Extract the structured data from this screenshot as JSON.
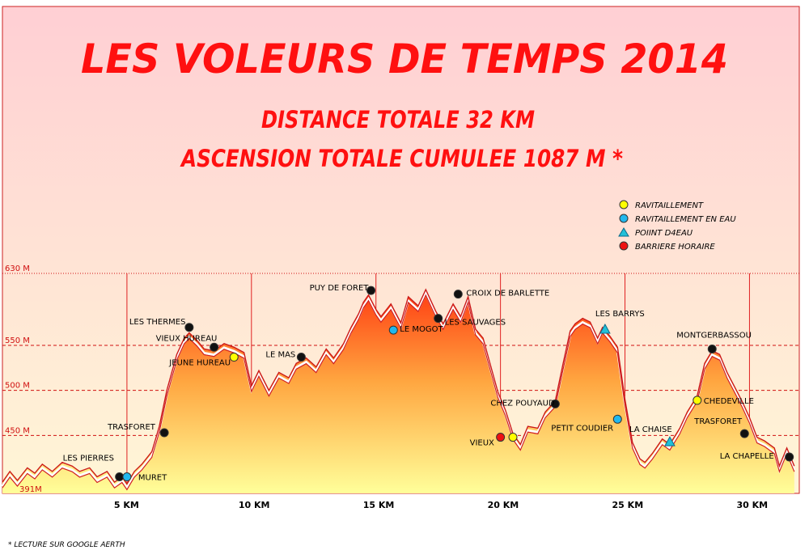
{
  "header": {
    "title": "LES VOLEURS DE TEMPS 2014",
    "line1": "DISTANCE TOTALE 32 KM",
    "line2": "ASCENSION TOTALE CUMULEE 1087 M *"
  },
  "footnote": "* LECTURE SUR GOOGLE AERTH",
  "legend": [
    {
      "label": "RAVITAILLEMENT",
      "kind": "ravito",
      "marker": "circle",
      "color": "#ffff00"
    },
    {
      "label": "RAVITAILLEMENT EN EAU",
      "kind": "eau",
      "marker": "circle",
      "color": "#22b8ee"
    },
    {
      "label": "POIINT D4EAU",
      "kind": "point",
      "marker": "triangle",
      "color": "#22c0d8"
    },
    {
      "label": "BARRIERE HORAIRE",
      "kind": "barriere",
      "marker": "circle",
      "color": "#ee1111"
    }
  ],
  "colors": {
    "bg_top": "#ffd0d0",
    "bg_bottom": "#fff8d8",
    "profile_top": "#ff4a1a",
    "profile_bottom": "#ffff90",
    "gridline": "#d01010",
    "outline": "#cc2020",
    "text_red": "#ff1010"
  },
  "chart_data": {
    "type": "area",
    "xlabel": "",
    "ylabel": "",
    "xlim": [
      0,
      32
    ],
    "ylim": [
      391,
      630
    ],
    "x_ticks": [
      {
        "value": 5,
        "label": "5 KM"
      },
      {
        "value": 10,
        "label": "10 KM"
      },
      {
        "value": 15,
        "label": "15 KM"
      },
      {
        "value": 20,
        "label": "20 KM"
      },
      {
        "value": 25,
        "label": "25 KM"
      },
      {
        "value": 30,
        "label": "30 KM"
      }
    ],
    "y_ticks": [
      {
        "value": 630,
        "label": "630 M"
      },
      {
        "value": 550,
        "label": "550 M"
      },
      {
        "value": 500,
        "label": "500 M"
      },
      {
        "value": 450,
        "label": "450 M"
      },
      {
        "value": 391,
        "label": "391M"
      }
    ],
    "grid": true,
    "series": [
      {
        "x": [
          0,
          0.3,
          0.6,
          1.0,
          1.3,
          1.6,
          2.0,
          2.4,
          2.8,
          3.1,
          3.5,
          3.8,
          4.2,
          4.5,
          4.8,
          5.0,
          5.3,
          5.6,
          6.0,
          6.3,
          6.6,
          7.0,
          7.3,
          7.5,
          7.8,
          8.1,
          8.5,
          8.9,
          9.3,
          9.7,
          10.0,
          10.3,
          10.7,
          11.1,
          11.5,
          11.8,
          12.2,
          12.6,
          13.0,
          13.3,
          13.7,
          14.0,
          14.3,
          14.5,
          14.7,
          15.0,
          15.2,
          15.6,
          16.0,
          16.3,
          16.7,
          17.0,
          17.4,
          17.7,
          18.1,
          18.4,
          18.7,
          19.0,
          19.3,
          19.6,
          19.9,
          20.2,
          20.5,
          20.8,
          21.1,
          21.5,
          21.8,
          22.2,
          22.5,
          22.8,
          23.0,
          23.3,
          23.6,
          23.9,
          24.1,
          24.4,
          24.7,
          25.0,
          25.3,
          25.6,
          25.8,
          26.1,
          26.5,
          26.8,
          27.2,
          27.5,
          27.9,
          28.2,
          28.5,
          28.8,
          29.1,
          29.4,
          29.7,
          30.0,
          30.3,
          30.6,
          31.0,
          31.2,
          31.5,
          31.8
        ],
        "y": [
          398,
          410,
          400,
          414,
          408,
          418,
          410,
          420,
          416,
          410,
          414,
          404,
          410,
          398,
          404,
          396,
          410,
          418,
          432,
          460,
          500,
          540,
          558,
          564,
          556,
          546,
          544,
          552,
          548,
          542,
          505,
          522,
          500,
          520,
          514,
          530,
          536,
          526,
          546,
          536,
          552,
          570,
          585,
          598,
          606,
          590,
          582,
          596,
          575,
          604,
          594,
          612,
          588,
          574,
          596,
          582,
          604,
          568,
          558,
          528,
          498,
          478,
          452,
          440,
          460,
          458,
          476,
          488,
          528,
          566,
          574,
          580,
          576,
          558,
          570,
          560,
          548,
          490,
          442,
          424,
          420,
          430,
          446,
          440,
          458,
          476,
          494,
          530,
          544,
          540,
          520,
          504,
          488,
          470,
          448,
          444,
          436,
          416,
          436,
          416
        ]
      }
    ],
    "points": [
      {
        "name": "LES PIERRES",
        "x": 4.7,
        "y": 404,
        "kind": "barriere_noir"
      },
      {
        "name": "MURET",
        "x": 5.0,
        "y": 404,
        "kind": "eau"
      },
      {
        "name": "TRASFORET",
        "x": 6.5,
        "y": 453,
        "kind": "noir"
      },
      {
        "name": "LES THERMES",
        "x": 7.5,
        "y": 570,
        "kind": "noir"
      },
      {
        "name": "VIEUX HUREAU",
        "x": 8.5,
        "y": 548,
        "kind": "noir"
      },
      {
        "name": "JEUNE HUREAU",
        "x": 9.3,
        "y": 537,
        "kind": "ravito"
      },
      {
        "name": "LE MAS",
        "x": 12.0,
        "y": 537,
        "kind": "noir"
      },
      {
        "name": "PUY DE FORET",
        "x": 14.8,
        "y": 611,
        "kind": "noir"
      },
      {
        "name": "LE MOGOT",
        "x": 15.7,
        "y": 567,
        "kind": "eau"
      },
      {
        "name": "LES SAUVAGES",
        "x": 17.5,
        "y": 580,
        "kind": "noir"
      },
      {
        "name": "CROIX DE BARLETTE",
        "x": 18.3,
        "y": 607,
        "kind": "noir"
      },
      {
        "name": "VIEUX",
        "x": 20.0,
        "y": 448,
        "kind": "barriere"
      },
      {
        "name": "",
        "x": 20.5,
        "y": 448,
        "kind": "ravito"
      },
      {
        "name": "CHEZ POUYAUD",
        "x": 22.2,
        "y": 485,
        "kind": "noir"
      },
      {
        "name": "PETIT COUDIER",
        "x": 24.7,
        "y": 468,
        "kind": "eau"
      },
      {
        "name": "LES BARRYS",
        "x": 24.2,
        "y": 568,
        "kind": "point"
      },
      {
        "name": "LA CHAISE",
        "x": 26.8,
        "y": 443,
        "kind": "point"
      },
      {
        "name": "CHEDEVILLE",
        "x": 27.9,
        "y": 489,
        "kind": "ravito"
      },
      {
        "name": "MONTGERBASSOU",
        "x": 28.5,
        "y": 546,
        "kind": "noir"
      },
      {
        "name": "TRASFORET",
        "x": 29.8,
        "y": 452,
        "kind": "noir"
      },
      {
        "name": "LA CHAPELLE",
        "x": 31.6,
        "y": 426,
        "kind": "noir"
      }
    ]
  }
}
